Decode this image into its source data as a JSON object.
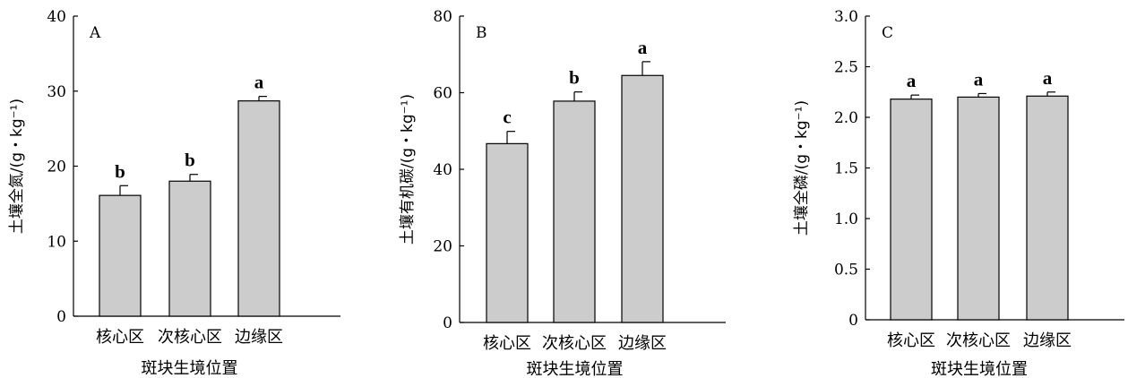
{
  "colors": {
    "bar_fill": "#cccccc",
    "axis": "#000000"
  },
  "chart_data": [
    {
      "type": "bar",
      "panel": "A",
      "categories": [
        "核心区",
        "次核心区",
        "边缘区"
      ],
      "values": [
        16.1,
        18.0,
        28.7
      ],
      "errors": [
        1.3,
        0.9,
        0.6
      ],
      "significance": [
        "b",
        "b",
        "a"
      ],
      "xlabel": "斑块生境位置",
      "ylabel": "土壤全氮/(g・kg⁻¹)",
      "ylim": [
        0,
        40
      ],
      "yticks": [
        "0",
        "10",
        "20",
        "30",
        "40"
      ],
      "grid": false,
      "legend": "none"
    },
    {
      "type": "bar",
      "panel": "B",
      "categories": [
        "核心区",
        "次核心区",
        "边缘区"
      ],
      "values": [
        46.7,
        57.8,
        64.5
      ],
      "errors": [
        3.2,
        2.4,
        3.6
      ],
      "significance": [
        "c",
        "b",
        "a"
      ],
      "xlabel": "斑块生境位置",
      "ylabel": "土壤有机碳/(g・kg⁻¹)",
      "ylim": [
        0,
        80
      ],
      "yticks": [
        "0",
        "20",
        "40",
        "60",
        "80"
      ],
      "grid": false,
      "legend": "none"
    },
    {
      "type": "bar",
      "panel": "C",
      "categories": [
        "核心区",
        "次核心区",
        "边缘区"
      ],
      "values": [
        2.18,
        2.2,
        2.21
      ],
      "errors": [
        0.04,
        0.035,
        0.04
      ],
      "significance": [
        "a",
        "a",
        "a"
      ],
      "xlabel": "斑块生境位置",
      "ylabel": "土壤全磷/(g・kg⁻¹)",
      "ylim": [
        0,
        3.0
      ],
      "yticks": [
        "0",
        "0.5",
        "1.0",
        "1.5",
        "2.0",
        "2.5",
        "3.0"
      ],
      "grid": false,
      "legend": "none"
    }
  ]
}
